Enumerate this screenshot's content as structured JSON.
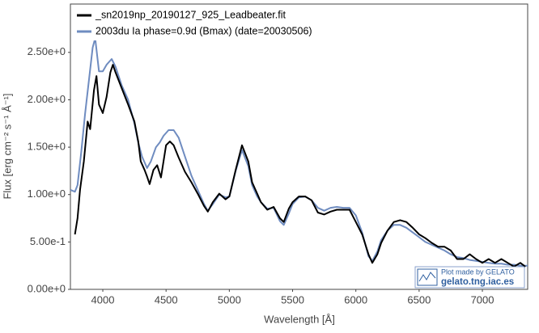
{
  "chart_data": {
    "type": "line",
    "x_label": "Wavelength [Å]",
    "y_label": "Flux [erg cm⁻² s⁻¹ Å⁻¹]",
    "xlim": [
      3744,
      7358
    ],
    "ylim": [
      0,
      3.01
    ],
    "xticks": [
      4000,
      4500,
      5000,
      5500,
      6000,
      6500,
      7000
    ],
    "yticks": [
      {
        "value": 0,
        "label": "0.00e+0"
      },
      {
        "value": 0.5,
        "label": "5.00e-1"
      },
      {
        "value": 1.0,
        "label": "1.00e+0"
      },
      {
        "value": 1.5,
        "label": "1.50e+0"
      },
      {
        "value": 2.0,
        "label": "2.00e+0"
      },
      {
        "value": 2.5,
        "label": "2.50e+0"
      }
    ],
    "grid": false,
    "legend": "upper left",
    "watermark": [
      "Plot made by GELATO",
      "gelato.tng.iac.es"
    ],
    "series": [
      {
        "name": "_sn2019np_20190127_925_Leadbeater.fit",
        "color": "#000000",
        "x": [
          3780,
          3800,
          3820,
          3850,
          3880,
          3900,
          3930,
          3950,
          3970,
          4000,
          4030,
          4060,
          4080,
          4100,
          4150,
          4200,
          4250,
          4280,
          4300,
          4330,
          4350,
          4370,
          4400,
          4430,
          4460,
          4500,
          4530,
          4560,
          4600,
          4650,
          4700,
          4750,
          4800,
          4830,
          4870,
          4920,
          4970,
          5000,
          5050,
          5100,
          5150,
          5180,
          5220,
          5250,
          5300,
          5350,
          5400,
          5430,
          5470,
          5500,
          5550,
          5600,
          5650,
          5700,
          5750,
          5800,
          5850,
          5900,
          5950,
          6000,
          6050,
          6100,
          6130,
          6170,
          6200,
          6250,
          6300,
          6350,
          6400,
          6450,
          6500,
          6550,
          6600,
          6650,
          6700,
          6750,
          6800,
          6850,
          6900,
          6950,
          7000,
          7050,
          7100,
          7150,
          7200,
          7250,
          7300,
          7340
        ],
        "values": [
          0.58,
          0.75,
          1.05,
          1.35,
          1.77,
          1.69,
          2.1,
          2.25,
          1.95,
          1.86,
          2.03,
          2.29,
          2.37,
          2.29,
          2.12,
          1.95,
          1.77,
          1.56,
          1.35,
          1.26,
          1.19,
          1.11,
          1.26,
          1.31,
          1.18,
          1.52,
          1.56,
          1.52,
          1.39,
          1.24,
          1.13,
          1.01,
          0.88,
          0.82,
          0.92,
          1.01,
          0.95,
          0.98,
          1.26,
          1.52,
          1.35,
          1.13,
          1.01,
          0.92,
          0.84,
          0.87,
          0.75,
          0.71,
          0.85,
          0.92,
          0.98,
          0.98,
          0.94,
          0.81,
          0.79,
          0.82,
          0.84,
          0.84,
          0.84,
          0.71,
          0.58,
          0.37,
          0.28,
          0.37,
          0.49,
          0.62,
          0.71,
          0.73,
          0.71,
          0.65,
          0.58,
          0.54,
          0.49,
          0.45,
          0.45,
          0.41,
          0.32,
          0.32,
          0.37,
          0.32,
          0.28,
          0.32,
          0.28,
          0.32,
          0.28,
          0.24,
          0.28,
          0.24
        ]
      },
      {
        "name": "2003du  Ia  phase=0.9d (Bmax)  (date=20030506)",
        "color": "#6f8cc0",
        "x": [
          3744,
          3780,
          3800,
          3830,
          3860,
          3890,
          3920,
          3940,
          3970,
          4000,
          4030,
          4070,
          4100,
          4150,
          4200,
          4250,
          4280,
          4310,
          4350,
          4380,
          4420,
          4450,
          4480,
          4520,
          4560,
          4600,
          4650,
          4700,
          4750,
          4800,
          4830,
          4870,
          4920,
          4970,
          5000,
          5050,
          5100,
          5150,
          5180,
          5220,
          5250,
          5300,
          5350,
          5400,
          5430,
          5470,
          5500,
          5550,
          5600,
          5650,
          5700,
          5750,
          5800,
          5850,
          5900,
          5950,
          6000,
          6050,
          6100,
          6130,
          6170,
          6200,
          6250,
          6300,
          6350,
          6400,
          6450,
          6500,
          6550,
          6600,
          6650,
          6700,
          6750,
          6800,
          6850,
          6900,
          6950,
          7000,
          7050,
          7100,
          7150,
          7200,
          7250,
          7300,
          7358
        ],
        "values": [
          1.05,
          1.03,
          1.1,
          1.45,
          1.85,
          2.2,
          2.55,
          2.65,
          2.3,
          2.3,
          2.37,
          2.43,
          2.35,
          2.15,
          2.0,
          1.75,
          1.55,
          1.4,
          1.28,
          1.35,
          1.5,
          1.55,
          1.62,
          1.68,
          1.68,
          1.6,
          1.4,
          1.2,
          1.05,
          0.9,
          0.83,
          0.9,
          1.0,
          0.97,
          0.98,
          1.25,
          1.47,
          1.3,
          1.1,
          0.98,
          0.92,
          0.85,
          0.86,
          0.72,
          0.68,
          0.8,
          0.9,
          0.97,
          0.98,
          0.94,
          0.86,
          0.83,
          0.86,
          0.87,
          0.86,
          0.86,
          0.78,
          0.6,
          0.35,
          0.3,
          0.4,
          0.52,
          0.62,
          0.68,
          0.68,
          0.65,
          0.6,
          0.55,
          0.5,
          0.47,
          0.44,
          0.41,
          0.37,
          0.34,
          0.33,
          0.31,
          0.3,
          0.29,
          0.28,
          0.27,
          0.27,
          0.26,
          0.26,
          0.25,
          0.25
        ]
      }
    ]
  }
}
